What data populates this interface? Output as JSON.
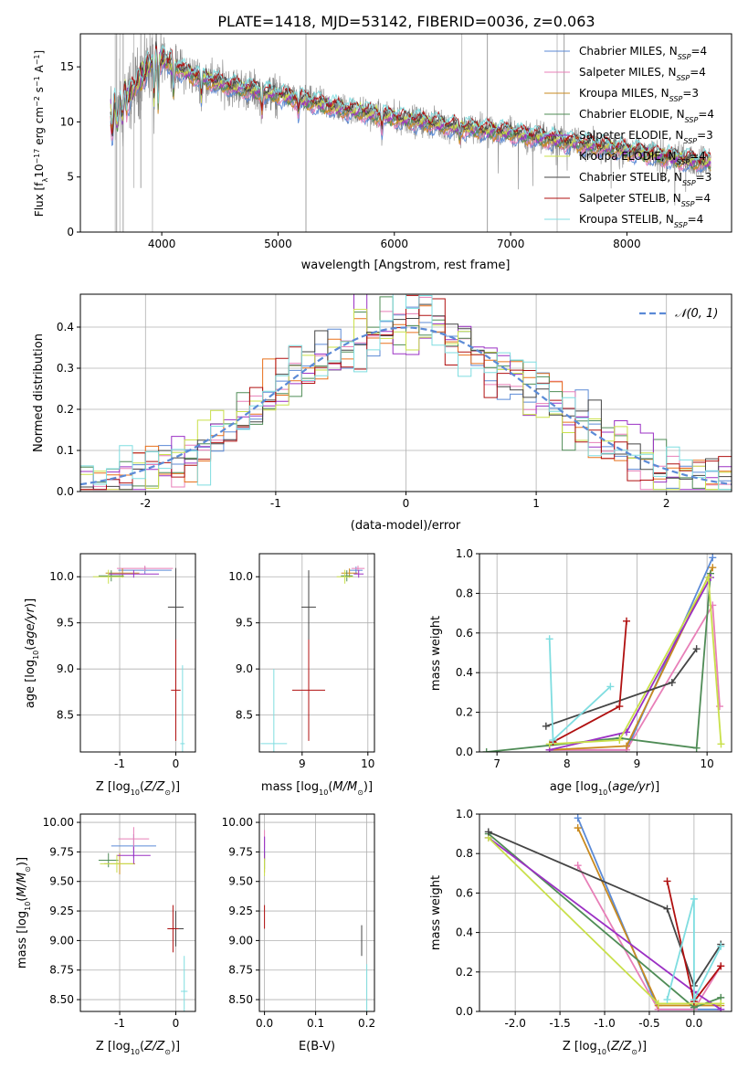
{
  "title": "PLATE=1418, MJD=53142, FIBERID=0036, z=0.063",
  "colors": {
    "chabrier_miles": "#5b8ad6",
    "salpeter_miles": "#e87fb8",
    "kroupa_miles": "#c98a1f",
    "chabrier_elodie": "#4f8c56",
    "salpeter_elodie": "#9b30c4",
    "kroupa_elodie": "#c9e04a",
    "chabrier_stelib": "#454545",
    "salpeter_stelib": "#b01010",
    "kroupa_stelib": "#7fdde0",
    "data_grey": "#808080",
    "orange": "#e8711c",
    "normal_curve": "#5b8ad6"
  },
  "legend_spectrum": [
    {
      "label": "Chabrier MILES, N",
      "n": "=4",
      "color": "#5b8ad6"
    },
    {
      "label": "Salpeter MILES, N",
      "n": "=4",
      "color": "#e87fb8"
    },
    {
      "label": "Kroupa MILES, N",
      "n": "=3",
      "color": "#c98a1f"
    },
    {
      "label": "Chabrier ELODIE, N",
      "n": "=4",
      "color": "#4f8c56"
    },
    {
      "label": "Salpeter ELODIE, N",
      "n": "=3",
      "color": "#9b30c4"
    },
    {
      "label": "Kroupa ELODIE, N",
      "n": "=4",
      "color": "#c9e04a"
    },
    {
      "label": "Chabrier STELIB, N",
      "n": "=3",
      "color": "#454545"
    },
    {
      "label": "Salpeter STELIB, N",
      "n": "=4",
      "color": "#b01010"
    },
    {
      "label": "Kroupa STELIB, N",
      "n": "=4",
      "color": "#7fdde0"
    }
  ],
  "legend_hist": "𝒩(0, 1)",
  "chart_data": [
    {
      "type": "line",
      "panel": "spectrum",
      "xlabel": "wavelength [Angstrom, rest frame]",
      "ylabel": "Flux [f_λ 10^-17 erg cm^-2 s^-1 A^-1]",
      "xlim": [
        3300,
        8900
      ],
      "ylim": [
        0,
        18
      ],
      "xticks": [
        4000,
        5000,
        6000,
        7000,
        8000
      ],
      "yticks": [
        0,
        5,
        10,
        15
      ],
      "continuum": {
        "x": [
          3600,
          3700,
          3850,
          3950,
          4050,
          4200,
          4500,
          4800,
          5000,
          5500,
          6000,
          6500,
          7000,
          7500,
          8000,
          8300,
          8600
        ],
        "y": [
          10.5,
          12.0,
          14.5,
          16.0,
          15.5,
          14.5,
          13.5,
          12.8,
          12.5,
          11.3,
          10.4,
          9.6,
          9.0,
          8.2,
          7.4,
          6.9,
          6.4
        ]
      }
    },
    {
      "type": "line",
      "panel": "residual histogram",
      "xlabel": "(data-model)/error",
      "ylabel": "Normed distribution",
      "xlim": [
        -2.5,
        2.5
      ],
      "ylim": [
        0,
        0.48
      ],
      "xticks": [
        -2,
        -1,
        0,
        1,
        2
      ],
      "yticks": [
        0.0,
        0.1,
        0.2,
        0.3,
        0.4
      ],
      "bin_width": 0.1
    },
    {
      "type": "scatter",
      "panel": "age vs Z",
      "xlabel": "Z [log10(Z/Z⊙)]",
      "ylabel": "age [log10(age/yr)]",
      "xlim": [
        -1.7,
        0.35
      ],
      "ylim": [
        8.1,
        10.25
      ],
      "xticks": [
        -1,
        0
      ],
      "yticks": [
        8.5,
        9.0,
        9.5,
        10.0
      ],
      "points": [
        {
          "x": -0.55,
          "y": 10.07,
          "xerr": 0.95,
          "yerr": 0.08,
          "color": "#5b8ad6"
        },
        {
          "x": -0.55,
          "y": 10.09,
          "xerr": 1.0,
          "yerr": 0.06,
          "color": "#e87fb8"
        },
        {
          "x": -0.95,
          "y": 10.04,
          "xerr": 0.6,
          "yerr": 0.1,
          "color": "#c98a1f"
        },
        {
          "x": -1.15,
          "y": 10.01,
          "xerr": 0.45,
          "yerr": 0.12,
          "color": "#4f8c56"
        },
        {
          "x": -0.75,
          "y": 10.03,
          "xerr": 0.9,
          "yerr": 0.08,
          "color": "#9b30c4"
        },
        {
          "x": -1.2,
          "y": 10.0,
          "xerr": 0.55,
          "yerr": 0.15,
          "color": "#c9e04a"
        },
        {
          "x": 0.0,
          "y": 9.67,
          "xerr": 0.28,
          "yerr": 0.85,
          "color": "#454545"
        },
        {
          "x": 0.0,
          "y": 8.77,
          "xerr": 0.17,
          "yerr": 1.1,
          "color": "#b01010"
        },
        {
          "x": 0.12,
          "y": 8.19,
          "xerr": 0.08,
          "yerr": 1.7,
          "color": "#7fdde0"
        }
      ]
    },
    {
      "type": "scatter",
      "panel": "age vs mass",
      "xlabel": "mass [log10(M/M⊙)]",
      "ylabel": "",
      "xlim": [
        8.35,
        10.1
      ],
      "ylim": [
        8.1,
        10.25
      ],
      "xticks": [
        9,
        10
      ],
      "yticks": [
        8.5,
        9.0,
        9.5,
        10.0
      ],
      "points": [
        {
          "x": 9.82,
          "y": 10.07,
          "xerr": 0.2,
          "yerr": 0.08,
          "color": "#5b8ad6"
        },
        {
          "x": 9.85,
          "y": 10.09,
          "xerr": 0.2,
          "yerr": 0.06,
          "color": "#e87fb8"
        },
        {
          "x": 9.72,
          "y": 10.04,
          "xerr": 0.25,
          "yerr": 0.1,
          "color": "#c98a1f"
        },
        {
          "x": 9.68,
          "y": 10.01,
          "xerr": 0.18,
          "yerr": 0.12,
          "color": "#4f8c56"
        },
        {
          "x": 9.86,
          "y": 10.03,
          "xerr": 0.15,
          "yerr": 0.08,
          "color": "#9b30c4"
        },
        {
          "x": 9.65,
          "y": 10.0,
          "xerr": 0.25,
          "yerr": 0.15,
          "color": "#c9e04a"
        },
        {
          "x": 9.1,
          "y": 9.67,
          "xerr": 0.22,
          "yerr": 0.8,
          "color": "#454545"
        },
        {
          "x": 9.1,
          "y": 8.77,
          "xerr": 0.5,
          "yerr": 1.1,
          "color": "#b01010"
        },
        {
          "x": 8.57,
          "y": 8.19,
          "xerr": 0.4,
          "yerr": 1.62,
          "color": "#7fdde0"
        }
      ]
    },
    {
      "type": "line",
      "panel": "mass weight vs age",
      "xlabel": "age  [log10(age/yr)]",
      "ylabel": "mass weight",
      "xlim": [
        6.75,
        10.35
      ],
      "ylim": [
        0,
        1.0
      ],
      "xticks": [
        7,
        8,
        9,
        10
      ],
      "yticks": [
        0.0,
        0.2,
        0.4,
        0.6,
        0.8,
        1.0
      ],
      "series": [
        {
          "color": "#5b8ad6",
          "x": [
            7.75,
            8.85,
            10.08
          ],
          "y": [
            0.01,
            0.01,
            0.98
          ]
        },
        {
          "color": "#e87fb8",
          "x": [
            7.75,
            8.85,
            10.08,
            10.18
          ],
          "y": [
            0.01,
            0.01,
            0.74,
            0.23
          ]
        },
        {
          "color": "#c98a1f",
          "x": [
            7.75,
            8.85,
            10.08
          ],
          "y": [
            0.01,
            0.03,
            0.93
          ]
        },
        {
          "color": "#4f8c56",
          "x": [
            6.85,
            8.75,
            9.85,
            10.05
          ],
          "y": [
            0.0,
            0.07,
            0.02,
            0.9
          ]
        },
        {
          "color": "#9b30c4",
          "x": [
            7.75,
            8.85,
            10.05
          ],
          "y": [
            0.01,
            0.1,
            0.88
          ]
        },
        {
          "color": "#c9e04a",
          "x": [
            7.75,
            8.75,
            10.02,
            10.2
          ],
          "y": [
            0.04,
            0.06,
            0.88,
            0.04
          ]
        },
        {
          "color": "#454545",
          "x": [
            7.7,
            9.5,
            9.85
          ],
          "y": [
            0.13,
            0.35,
            0.52
          ]
        },
        {
          "color": "#b01010",
          "x": [
            7.8,
            8.75,
            8.85
          ],
          "y": [
            0.05,
            0.23,
            0.66
          ]
        },
        {
          "color": "#7fdde0",
          "x": [
            7.75,
            7.8,
            8.62
          ],
          "y": [
            0.57,
            0.06,
            0.33
          ]
        }
      ]
    },
    {
      "type": "scatter",
      "panel": "mass vs Z",
      "xlabel": "Z [log10(Z/Z⊙)]",
      "ylabel": "mass [log10(M/M⊙)]",
      "xlim": [
        -1.7,
        0.35
      ],
      "ylim": [
        8.4,
        10.07
      ],
      "xticks": [
        -1,
        0
      ],
      "yticks": [
        8.5,
        8.75,
        9.0,
        9.25,
        9.5,
        9.75,
        10.0
      ],
      "points": [
        {
          "x": -0.75,
          "y": 9.8,
          "xerr": 0.8,
          "yerr": 0.2,
          "color": "#5b8ad6"
        },
        {
          "x": -0.75,
          "y": 9.86,
          "xerr": 0.55,
          "yerr": 0.2,
          "color": "#e87fb8"
        },
        {
          "x": -1.0,
          "y": 9.65,
          "xerr": 0.55,
          "yerr": 0.18,
          "color": "#c98a1f"
        },
        {
          "x": -1.2,
          "y": 9.68,
          "xerr": 0.35,
          "yerr": 0.12,
          "color": "#4f8c56"
        },
        {
          "x": -0.75,
          "y": 9.72,
          "xerr": 0.6,
          "yerr": 0.15,
          "color": "#9b30c4"
        },
        {
          "x": -1.05,
          "y": 9.65,
          "xerr": 0.6,
          "yerr": 0.15,
          "color": "#c9e04a"
        },
        {
          "x": 0.0,
          "y": 9.1,
          "xerr": 0.28,
          "yerr": 0.3,
          "color": "#454545"
        },
        {
          "x": -0.05,
          "y": 9.1,
          "xerr": 0.2,
          "yerr": 0.4,
          "color": "#b01010"
        },
        {
          "x": 0.15,
          "y": 8.57,
          "xerr": 0.12,
          "yerr": 0.6,
          "color": "#7fdde0"
        }
      ]
    },
    {
      "type": "scatter",
      "panel": "mass vs E(B-V)",
      "xlabel": "E(B-V)",
      "ylabel": "",
      "xlim": [
        -0.01,
        0.215
      ],
      "ylim": [
        8.4,
        10.07
      ],
      "xticks": [
        0.0,
        0.1,
        0.2
      ],
      "yticks": [
        8.5,
        8.75,
        9.0,
        9.25,
        9.5,
        9.75,
        10.0
      ],
      "points": [
        {
          "x": 0.0,
          "y": 9.8,
          "yerr": 0.15,
          "color": "#5b8ad6"
        },
        {
          "x": 0.0,
          "y": 9.86,
          "yerr": 0.15,
          "color": "#e87fb8"
        },
        {
          "x": 0.0,
          "y": 9.65,
          "yerr": 0.15,
          "color": "#c98a1f"
        },
        {
          "x": 0.0,
          "y": 9.68,
          "yerr": 0.15,
          "color": "#4f8c56"
        },
        {
          "x": 0.0,
          "y": 9.78,
          "yerr": 0.2,
          "color": "#9b30c4"
        },
        {
          "x": 0.0,
          "y": 9.62,
          "yerr": 0.15,
          "color": "#c9e04a"
        },
        {
          "x": 0.19,
          "y": 9.0,
          "yerr": 0.26,
          "color": "#454545"
        },
        {
          "x": 0.0,
          "y": 9.2,
          "yerr": 0.2,
          "color": "#b01010"
        },
        {
          "x": 0.2,
          "y": 8.6,
          "yerr": 0.4,
          "color": "#7fdde0"
        }
      ]
    },
    {
      "type": "line",
      "panel": "mass weight vs Z",
      "xlabel": "Z [log10(Z/Z⊙)]",
      "ylabel": "mass weight",
      "xlim": [
        -2.4,
        0.42
      ],
      "ylim": [
        0,
        1.0
      ],
      "xticks": [
        -2.0,
        -1.5,
        -1.0,
        -0.5,
        0.0
      ],
      "yticks": [
        0.0,
        0.2,
        0.4,
        0.6,
        0.8,
        1.0
      ],
      "series": [
        {
          "color": "#5b8ad6",
          "x": [
            -1.3,
            -0.4,
            0.3
          ],
          "y": [
            0.98,
            0.01,
            0.01
          ]
        },
        {
          "color": "#e87fb8",
          "x": [
            -1.3,
            -0.4,
            0.0,
            0.3
          ],
          "y": [
            0.74,
            0.01,
            0.01,
            0.23
          ]
        },
        {
          "color": "#c98a1f",
          "x": [
            -1.3,
            -0.4,
            0.3
          ],
          "y": [
            0.93,
            0.03,
            0.03
          ]
        },
        {
          "color": "#4f8c56",
          "x": [
            -2.3,
            0.0,
            0.3
          ],
          "y": [
            0.9,
            0.02,
            0.07
          ]
        },
        {
          "color": "#9b30c4",
          "x": [
            -2.3,
            0.0,
            0.3
          ],
          "y": [
            0.88,
            0.1,
            0.01
          ]
        },
        {
          "color": "#c9e04a",
          "x": [
            -2.3,
            -0.4,
            0.3
          ],
          "y": [
            0.88,
            0.04,
            0.04
          ]
        },
        {
          "color": "#454545",
          "x": [
            -2.3,
            -0.3,
            0.0,
            0.3
          ],
          "y": [
            0.91,
            0.52,
            0.13,
            0.34
          ]
        },
        {
          "color": "#b01010",
          "x": [
            -0.3,
            0.0,
            0.3
          ],
          "y": [
            0.66,
            0.05,
            0.23
          ]
        },
        {
          "color": "#7fdde0",
          "x": [
            -0.3,
            0.0,
            0.0,
            0.3
          ],
          "y": [
            0.06,
            0.57,
            0.06,
            0.33
          ]
        }
      ]
    }
  ]
}
